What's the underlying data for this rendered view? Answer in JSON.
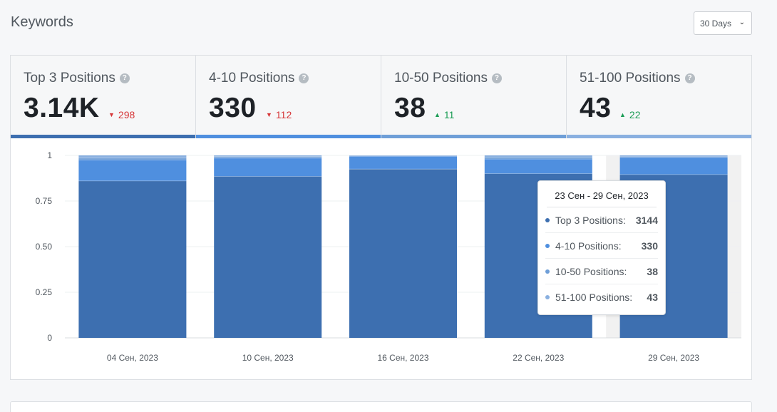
{
  "header": {
    "title": "Keywords",
    "range_label": "30 Days"
  },
  "stats": [
    {
      "label": "Top 3 Positions",
      "value": "3.14K",
      "change": "298",
      "direction": "down",
      "color": "#3d6fb0"
    },
    {
      "label": "4-10 Positions",
      "value": "330",
      "change": "112",
      "direction": "down",
      "color": "#4f8fdf"
    },
    {
      "label": "10-50 Positions",
      "value": "38",
      "change": "11",
      "direction": "up",
      "color": "#6f9fd8"
    },
    {
      "label": "51-100 Positions",
      "value": "43",
      "change": "22",
      "direction": "up",
      "color": "#8ab0e0"
    }
  ],
  "chart_data": {
    "type": "bar",
    "stacked": true,
    "categories": [
      "04 Сен, 2023",
      "10 Сен, 2023",
      "16 Сен, 2023",
      "22 Сен, 2023",
      "29 Сен, 2023"
    ],
    "ylim": [
      0,
      1
    ],
    "yticks": [
      "1",
      "0.75",
      "0.50",
      "0.25",
      "0"
    ],
    "ytick_values": [
      1,
      0.75,
      0.5,
      0.25,
      0
    ],
    "series": [
      {
        "name": "Top 3 Positions",
        "color": "#3d6fb0",
        "values": [
          0.86,
          0.885,
          0.925,
          0.9,
          0.895
        ]
      },
      {
        "name": "4-10 Positions",
        "color": "#4f8fdf",
        "values": [
          0.115,
          0.1,
          0.07,
          0.08,
          0.094
        ]
      },
      {
        "name": "10-50 Positions",
        "color": "#6f9fd8",
        "values": [
          0.01,
          0.008,
          0.003,
          0.01,
          0.005
        ]
      },
      {
        "name": "51-100 Positions",
        "color": "#8ab0e0",
        "values": [
          0.015,
          0.007,
          0.002,
          0.01,
          0.006
        ]
      }
    ],
    "hover_index": 4,
    "tooltip": {
      "title": "23 Сен - 29 Сен, 2023",
      "rows": [
        {
          "label": "Top 3 Positions:",
          "value": "3144",
          "color": "#3d6fb0"
        },
        {
          "label": "4-10 Positions:",
          "value": "330",
          "color": "#4f8fdf"
        },
        {
          "label": "10-50 Positions:",
          "value": "38",
          "color": "#6f9fd8"
        },
        {
          "label": "51-100 Positions:",
          "value": "43",
          "color": "#8ab0e0"
        }
      ]
    }
  }
}
